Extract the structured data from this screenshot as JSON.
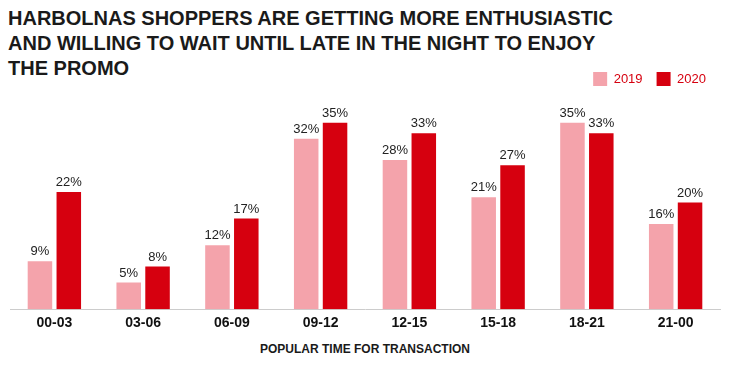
{
  "chart_data": {
    "type": "bar",
    "title": "HARBOLNAS SHOPPERS ARE GETTING MORE ENTHUSIASTIC AND WILLING TO WAIT UNTIL LATE IN THE NIGHT TO ENJOY THE PROMO",
    "annotation": "POPULAR TIME FOR TRANSACTION",
    "categories": [
      "00-03",
      "03-06",
      "06-09",
      "09-12",
      "12-15",
      "15-18",
      "18-21",
      "21-00"
    ],
    "series": [
      {
        "name": "2019",
        "color": "#f4a3ab",
        "values": [
          9,
          5,
          12,
          32,
          28,
          21,
          35,
          16
        ],
        "value_labels": [
          "9%",
          "5%",
          "12%",
          "32%",
          "28%",
          "21%",
          "35%",
          "16%"
        ]
      },
      {
        "name": "2020",
        "color": "#d6000f",
        "values": [
          22,
          8,
          17,
          35,
          33,
          27,
          33,
          20
        ],
        "value_labels": [
          "22%",
          "8%",
          "17%",
          "35%",
          "33%",
          "27%",
          "33%",
          "20%"
        ]
      }
    ],
    "ylim": [
      0,
      40
    ],
    "data_labels": true,
    "legend": "top-right",
    "tick_labels": "x",
    "grid": false
  }
}
